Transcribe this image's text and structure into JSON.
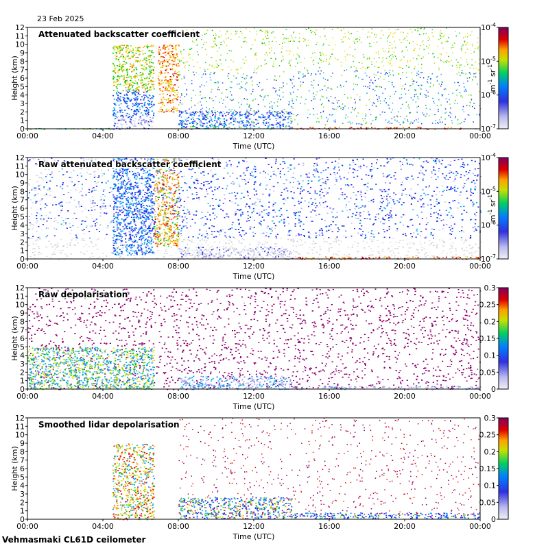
{
  "date": "23 Feb 2025",
  "footer": "Vehmasmaki CL61D ceilometer",
  "chart_data": [
    {
      "type": "heatmap",
      "title": "Attenuated backscatter coefficient",
      "xlabel": "Time (UTC)",
      "ylabel": "Height (km)",
      "xticks": [
        "00:00",
        "04:00",
        "08:00",
        "12:00",
        "16:00",
        "20:00",
        "00:00"
      ],
      "xlim": [
        0,
        24
      ],
      "yticks": [
        0,
        1,
        2,
        3,
        4,
        5,
        6,
        7,
        8,
        9,
        10,
        11,
        12
      ],
      "ylim": [
        0,
        12
      ],
      "colorbar": {
        "scale": "log",
        "range": [
          1e-07,
          0.0001
        ],
        "ticks": [
          "10-7",
          "10-6",
          "10-5",
          "10-4"
        ],
        "unit": "m-1 sr-1"
      },
      "palette": "sparse",
      "features": [
        {
          "t0": 0.0,
          "t1": 4.5,
          "h0": 0.0,
          "h1": 0.1,
          "intensity": 0.55
        },
        {
          "t0": 4.5,
          "t1": 6.7,
          "h0": 0.0,
          "h1": 1.5,
          "intensity": 0.15
        },
        {
          "t0": 4.5,
          "t1": 6.7,
          "h0": 1.5,
          "h1": 4.5,
          "intensity": 0.35
        },
        {
          "t0": 4.5,
          "t1": 6.7,
          "h0": 4.5,
          "h1": 10.0,
          "intensity": 0.65
        },
        {
          "t0": 6.9,
          "t1": 8.0,
          "h0": 2.0,
          "h1": 10.0,
          "intensity": 0.8
        },
        {
          "t0": 8.0,
          "t1": 14.0,
          "h0": 0.0,
          "h1": 0.35,
          "intensity": 0.45
        },
        {
          "t0": 8.0,
          "t1": 14.0,
          "h0": 0.35,
          "h1": 2.2,
          "intensity": 0.3
        },
        {
          "t0": 14.0,
          "t1": 24.0,
          "h0": 0.0,
          "h1": 0.25,
          "intensity": 0.9
        }
      ]
    },
    {
      "type": "heatmap",
      "title": "Raw attenuated backscatter coefficient",
      "xlabel": "Time (UTC)",
      "ylabel": "Height (km)",
      "xticks": [
        "00:00",
        "04:00",
        "08:00",
        "12:00",
        "16:00",
        "20:00",
        "00:00"
      ],
      "xlim": [
        0,
        24
      ],
      "yticks": [
        0,
        1,
        2,
        3,
        4,
        5,
        6,
        7,
        8,
        9,
        10,
        11,
        12
      ],
      "ylim": [
        0,
        12
      ],
      "colorbar": {
        "scale": "log",
        "range": [
          1e-07,
          0.0001
        ],
        "ticks": [
          "10-7",
          "10-6",
          "10-5",
          "10-4"
        ],
        "unit": "m-1 sr-1"
      },
      "palette": "dense",
      "features": [
        {
          "t0": 4.5,
          "t1": 6.7,
          "h0": 0.5,
          "h1": 12.0,
          "intensity": 0.35
        },
        {
          "t0": 6.7,
          "t1": 8.0,
          "h0": 1.5,
          "h1": 12.0,
          "intensity": 0.75
        },
        {
          "t0": 8.0,
          "t1": 14.0,
          "h0": 0.0,
          "h1": 1.5,
          "intensity": 0.1
        },
        {
          "t0": 14.0,
          "t1": 24.0,
          "h0": 0.0,
          "h1": 0.3,
          "intensity": 0.9
        }
      ]
    },
    {
      "type": "heatmap",
      "title": "Raw depolarisation",
      "xlabel": "Time (UTC)",
      "ylabel": "Height (km)",
      "xticks": [
        "00:00",
        "04:00",
        "08:00",
        "12:00",
        "16:00",
        "20:00",
        "00:00"
      ],
      "xlim": [
        0,
        24
      ],
      "yticks": [
        0,
        1,
        2,
        3,
        4,
        5,
        6,
        7,
        8,
        9,
        10,
        11,
        12
      ],
      "ylim": [
        0,
        12
      ],
      "colorbar": {
        "scale": "linear",
        "range": [
          0,
          0.3
        ],
        "ticks": [
          "0",
          "0.05",
          "0.1",
          "0.15",
          "0.2",
          "0.25",
          "0.3"
        ],
        "unit": ""
      },
      "palette": "noise",
      "features": [
        {
          "t0": 0.0,
          "t1": 6.7,
          "h0": 0.0,
          "h1": 5.0,
          "intensity": 0.4
        },
        {
          "t0": 8.0,
          "t1": 14.0,
          "h0": 0.0,
          "h1": 1.6,
          "intensity": 0.2
        },
        {
          "t0": 14.0,
          "t1": 24.0,
          "h0": 0.0,
          "h1": 0.4,
          "intensity": 0.1
        }
      ]
    },
    {
      "type": "heatmap",
      "title": "Smoothed lidar depolarisation",
      "xlabel": "Time (UTC)",
      "ylabel": "Height (km)",
      "xticks": [
        "00:00",
        "04:00",
        "08:00",
        "12:00",
        "16:00",
        "20:00",
        "00:00"
      ],
      "xlim": [
        0,
        24
      ],
      "yticks": [
        0,
        1,
        2,
        3,
        4,
        5,
        6,
        7,
        8,
        9,
        10,
        11,
        12
      ],
      "ylim": [
        0,
        12
      ],
      "colorbar": {
        "scale": "linear",
        "range": [
          0,
          0.3
        ],
        "ticks": [
          "0",
          "0.05",
          "0.1",
          "0.15",
          "0.2",
          "0.25",
          "0.3"
        ],
        "unit": ""
      },
      "palette": "smoothdepol",
      "features": [
        {
          "t0": 4.5,
          "t1": 6.7,
          "h0": 0.0,
          "h1": 9.0,
          "intensity": 0.45
        },
        {
          "t0": 8.0,
          "t1": 14.0,
          "h0": 0.1,
          "h1": 2.6,
          "intensity": 0.3
        },
        {
          "t0": 14.0,
          "t1": 24.0,
          "h0": 0.1,
          "h1": 0.8,
          "intensity": 0.2
        }
      ]
    }
  ]
}
